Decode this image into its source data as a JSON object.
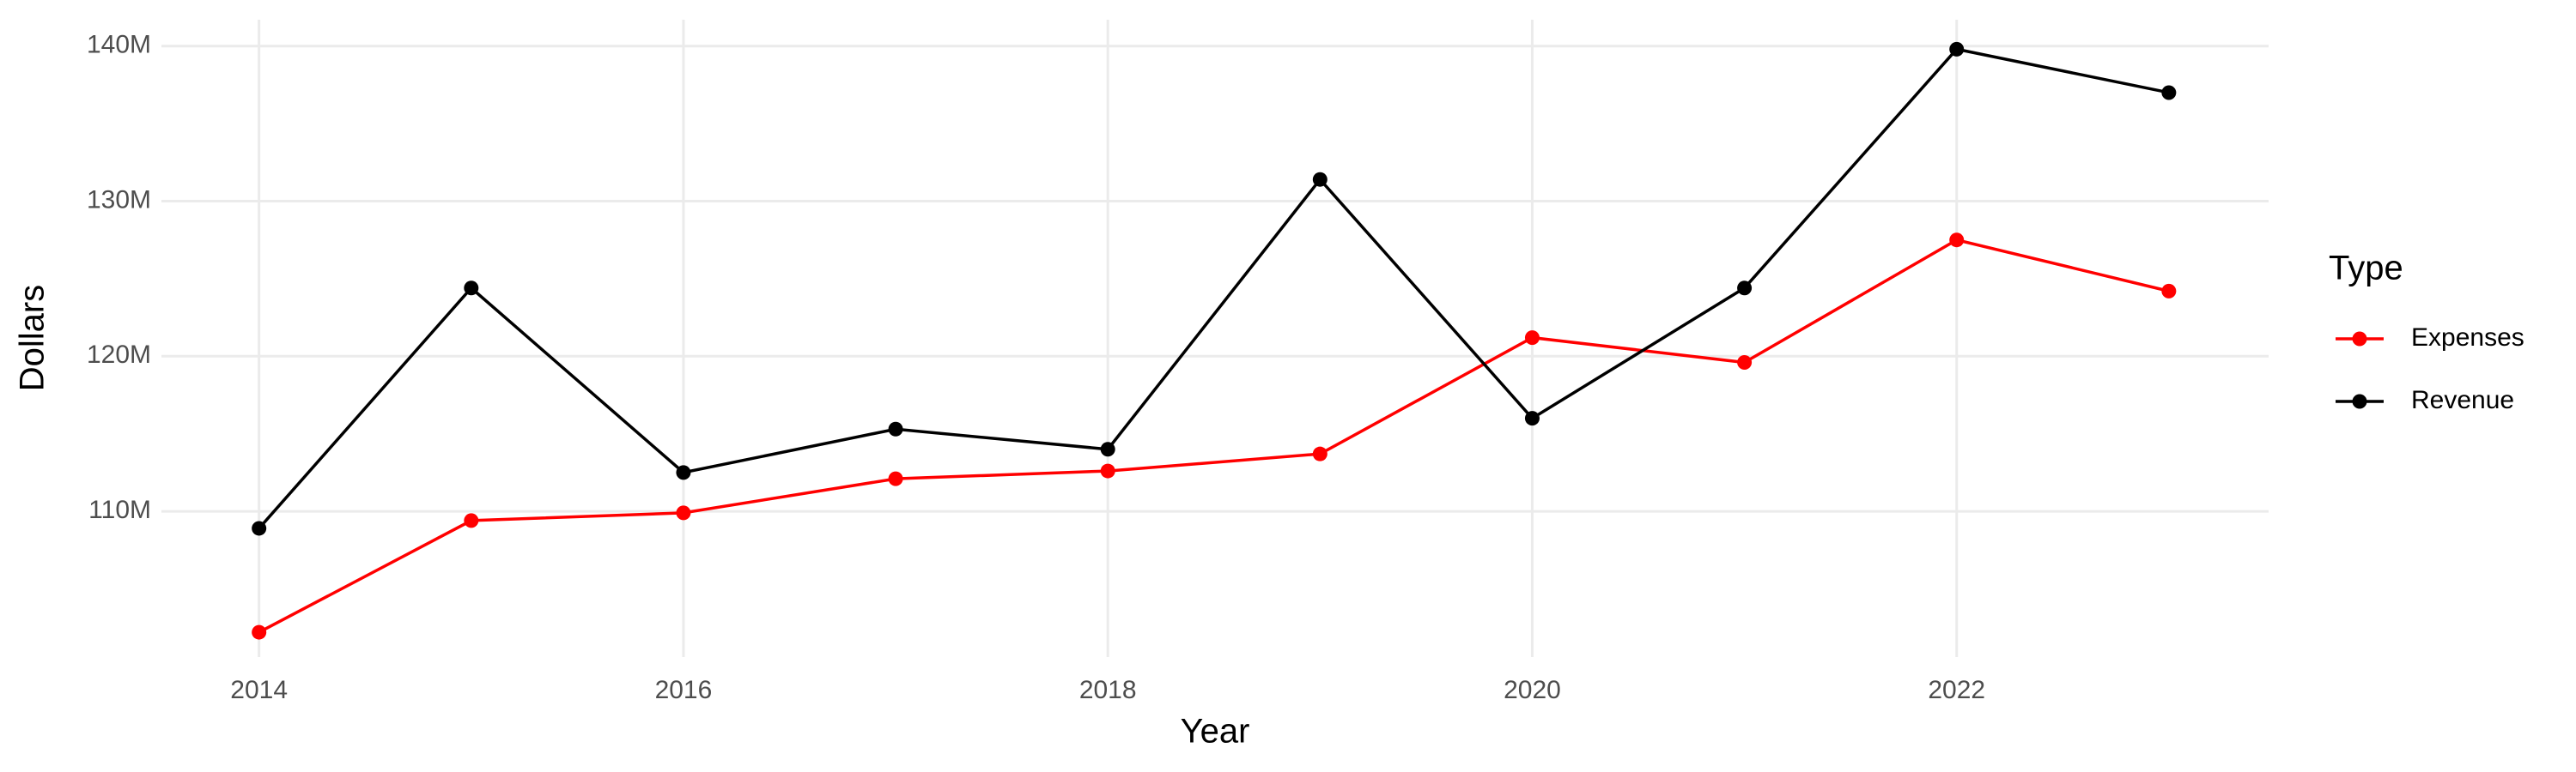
{
  "chart_data": {
    "type": "line",
    "x": [
      2014,
      2015,
      2016,
      2017,
      2018,
      2019,
      2020,
      2021,
      2022,
      2023
    ],
    "series": [
      {
        "name": "Expenses",
        "color": "#ff0000",
        "values": [
          102200000,
          109400000,
          109900000,
          112100000,
          112600000,
          113700000,
          121200000,
          119600000,
          127500000,
          124200000
        ]
      },
      {
        "name": "Revenue",
        "color": "#000000",
        "values": [
          108900000,
          124400000,
          112500000,
          115300000,
          114000000,
          131400000,
          116000000,
          124400000,
          139800000,
          137000000
        ]
      }
    ],
    "x_label": "Year",
    "y_label": "Dollars",
    "legend_title": "Type",
    "legend": "right",
    "xlim": [
      2013.54,
      2023.47
    ],
    "xticks": [
      2014,
      2016,
      2018,
      2020,
      2022
    ],
    "ylim": [
      100600000,
      141700000
    ],
    "yticks": [
      {
        "value": 110000000,
        "label": "110M"
      },
      {
        "value": 120000000,
        "label": "120M"
      },
      {
        "value": 130000000,
        "label": "130M"
      },
      {
        "value": 140000000,
        "label": "140M"
      }
    ],
    "grid": true
  }
}
